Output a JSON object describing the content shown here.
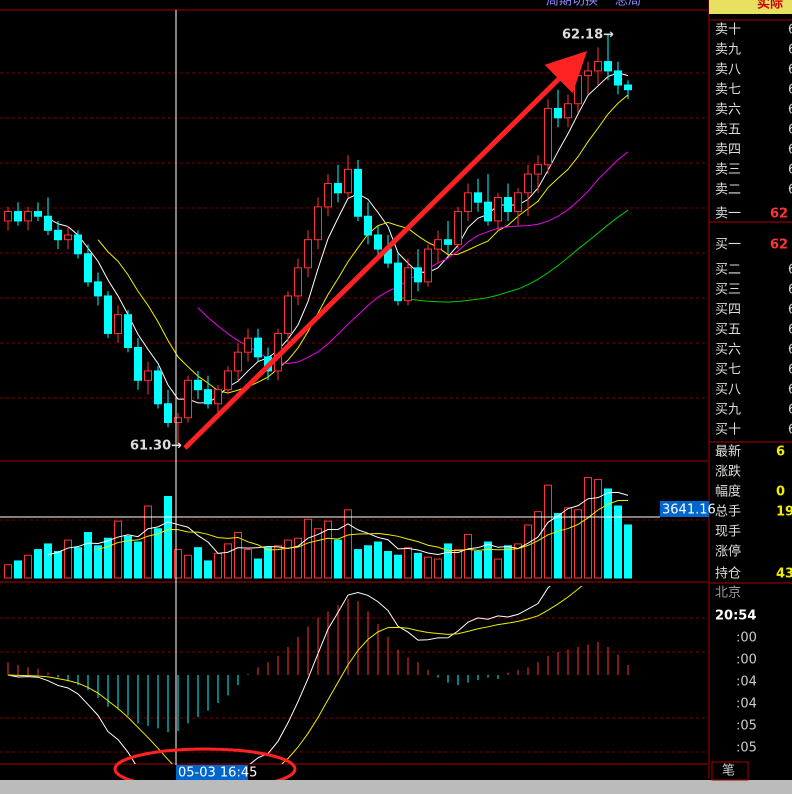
{
  "header": {
    "title": "实际",
    "tabs": [
      "周期切换",
      "总局"
    ]
  },
  "chart_data": {
    "type": "candlestick",
    "candles": [
      [
        61.78,
        61.81,
        61.76,
        61.8
      ],
      [
        61.8,
        61.82,
        61.77,
        61.78
      ],
      [
        61.78,
        61.81,
        61.76,
        61.8
      ],
      [
        61.8,
        61.82,
        61.78,
        61.79
      ],
      [
        61.79,
        61.83,
        61.75,
        61.76
      ],
      [
        61.76,
        61.78,
        61.72,
        61.74
      ],
      [
        61.74,
        61.77,
        61.72,
        61.75
      ],
      [
        61.75,
        61.76,
        61.7,
        61.71
      ],
      [
        61.71,
        61.73,
        61.64,
        61.65
      ],
      [
        61.65,
        61.67,
        61.6,
        61.62
      ],
      [
        61.62,
        61.63,
        61.53,
        61.54
      ],
      [
        61.54,
        61.6,
        61.52,
        61.58
      ],
      [
        61.58,
        61.59,
        61.5,
        61.51
      ],
      [
        61.51,
        61.53,
        61.42,
        61.44
      ],
      [
        61.44,
        61.48,
        61.41,
        61.46
      ],
      [
        61.46,
        61.47,
        61.38,
        61.39
      ],
      [
        61.39,
        61.42,
        61.34,
        61.35
      ],
      [
        61.35,
        61.37,
        61.3,
        61.36
      ],
      [
        61.36,
        61.45,
        61.35,
        61.44
      ],
      [
        61.44,
        61.46,
        61.4,
        61.42
      ],
      [
        61.42,
        61.45,
        61.38,
        61.39
      ],
      [
        61.39,
        61.43,
        61.37,
        61.42
      ],
      [
        61.42,
        61.47,
        61.41,
        61.46
      ],
      [
        61.46,
        61.52,
        61.44,
        61.5
      ],
      [
        61.5,
        61.55,
        61.48,
        61.53
      ],
      [
        61.53,
        61.55,
        61.48,
        61.49
      ],
      [
        61.49,
        61.51,
        61.44,
        61.46
      ],
      [
        61.46,
        61.55,
        61.44,
        61.54
      ],
      [
        61.54,
        61.63,
        61.52,
        61.62
      ],
      [
        61.62,
        61.7,
        61.6,
        61.68
      ],
      [
        61.68,
        61.76,
        61.66,
        61.74
      ],
      [
        61.74,
        61.83,
        61.72,
        61.81
      ],
      [
        61.81,
        61.88,
        61.79,
        61.86
      ],
      [
        61.86,
        61.9,
        61.82,
        61.84
      ],
      [
        61.84,
        61.92,
        61.83,
        61.89
      ],
      [
        61.89,
        61.91,
        61.78,
        61.79
      ],
      [
        61.79,
        61.82,
        61.73,
        61.75
      ],
      [
        61.75,
        61.77,
        61.7,
        61.72
      ],
      [
        61.72,
        61.75,
        61.68,
        61.69
      ],
      [
        61.69,
        61.71,
        61.6,
        61.61
      ],
      [
        61.61,
        61.7,
        61.6,
        61.68
      ],
      [
        61.68,
        61.72,
        61.63,
        61.65
      ],
      [
        61.65,
        61.73,
        61.64,
        61.72
      ],
      [
        61.72,
        61.76,
        61.69,
        61.74
      ],
      [
        61.74,
        61.78,
        61.71,
        61.73
      ],
      [
        61.73,
        61.81,
        61.72,
        61.8
      ],
      [
        61.8,
        61.86,
        61.78,
        61.84
      ],
      [
        61.84,
        61.87,
        61.8,
        61.82
      ],
      [
        61.82,
        61.88,
        61.77,
        61.78
      ],
      [
        61.78,
        61.84,
        61.76,
        61.83
      ],
      [
        61.83,
        61.86,
        61.78,
        61.8
      ],
      [
        61.8,
        61.85,
        61.77,
        61.84
      ],
      [
        61.84,
        61.9,
        61.79,
        61.88
      ],
      [
        61.88,
        61.92,
        61.84,
        61.9
      ],
      [
        61.9,
        62.04,
        61.88,
        62.02
      ],
      [
        62.02,
        62.06,
        61.98,
        62.0
      ],
      [
        62.0,
        62.05,
        61.98,
        62.03
      ],
      [
        62.03,
        62.1,
        62.01,
        62.09
      ],
      [
        62.09,
        62.12,
        62.05,
        62.1
      ],
      [
        62.1,
        62.15,
        62.07,
        62.12
      ],
      [
        62.12,
        62.18,
        62.08,
        62.1
      ],
      [
        62.1,
        62.12,
        62.05,
        62.07
      ],
      [
        62.07,
        62.08,
        62.04,
        62.06
      ]
    ],
    "ylim": [
      61.27,
      62.23
    ],
    "high_label": "62.18→",
    "low_label": "61.30→",
    "volume": {
      "values": [
        700,
        900,
        1200,
        1500,
        1800,
        1400,
        2000,
        1600,
        2400,
        1700,
        2100,
        3000,
        2200,
        1900,
        3800,
        2600,
        4300,
        1500,
        1200,
        1600,
        900,
        1300,
        1800,
        2400,
        1500,
        1000,
        1600,
        1700,
        2000,
        2100,
        3100,
        2600,
        3000,
        2000,
        3600,
        1500,
        1700,
        1900,
        1400,
        1200,
        1600,
        1300,
        1100,
        1000,
        1800,
        1500,
        2300,
        1400,
        1900,
        1000,
        1700,
        1800,
        2800,
        3500,
        4900,
        3400,
        3700,
        3600,
        5300,
        5200,
        4700,
        3800,
        2800
      ],
      "ylim": [
        0,
        5700
      ],
      "cursor_label": "3641.16"
    },
    "macd": {
      "values": [
        0.01,
        0.008,
        0.006,
        0.005,
        0.002,
        -0.002,
        -0.005,
        -0.008,
        -0.012,
        -0.018,
        -0.025,
        -0.027,
        -0.032,
        -0.038,
        -0.04,
        -0.042,
        -0.045,
        -0.044,
        -0.038,
        -0.033,
        -0.028,
        -0.022,
        -0.016,
        -0.008,
        0.001,
        0.006,
        0.01,
        0.015,
        0.022,
        0.03,
        0.038,
        0.045,
        0.05,
        0.055,
        0.06,
        0.058,
        0.05,
        0.04,
        0.03,
        0.02,
        0.014,
        0.01,
        0.004,
        -0.002,
        -0.006,
        -0.008,
        -0.006,
        -0.004,
        -0.002,
        -0.003,
        0.002,
        0.004,
        0.006,
        0.01,
        0.015,
        0.018,
        0.02,
        0.022,
        0.024,
        0.026,
        0.022,
        0.016,
        0.008
      ],
      "ylim": [
        -0.07,
        0.07
      ]
    },
    "cursor_time": "05-03 16:45"
  },
  "order_book": {
    "asks": [
      {
        "label": "卖十",
        "value": "6"
      },
      {
        "label": "卖九",
        "value": "6"
      },
      {
        "label": "卖八",
        "value": "6"
      },
      {
        "label": "卖七",
        "value": "6"
      },
      {
        "label": "卖六",
        "value": "6"
      },
      {
        "label": "卖五",
        "value": "6"
      },
      {
        "label": "卖四",
        "value": "6"
      },
      {
        "label": "卖三",
        "value": "6"
      },
      {
        "label": "卖二",
        "value": "6"
      },
      {
        "label": "卖一",
        "value": "62"
      }
    ],
    "bids": [
      {
        "label": "买一",
        "value": "62"
      },
      {
        "label": "买二",
        "value": "6"
      },
      {
        "label": "买三",
        "value": "6"
      },
      {
        "label": "买四",
        "value": "6"
      },
      {
        "label": "买五",
        "value": "6"
      },
      {
        "label": "买六",
        "value": "6"
      },
      {
        "label": "买七",
        "value": "6"
      },
      {
        "label": "买八",
        "value": "6"
      },
      {
        "label": "买九",
        "value": "6"
      },
      {
        "label": "买十",
        "value": "6"
      }
    ]
  },
  "quote": [
    {
      "label": "最新",
      "value": "6"
    },
    {
      "label": "涨跌"
    },
    {
      "label": "幅度",
      "value": "0"
    },
    {
      "label": "总手",
      "value": "19"
    },
    {
      "label": "现手"
    },
    {
      "label": "涨停"
    },
    {
      "label": "持仓",
      "value": "43"
    }
  ],
  "ticks": {
    "location": "北京",
    "time": "20:54",
    "rows": [
      ":00",
      ":00",
      ":04",
      ":04",
      ":05",
      ":05"
    ]
  },
  "tab": "笔"
}
